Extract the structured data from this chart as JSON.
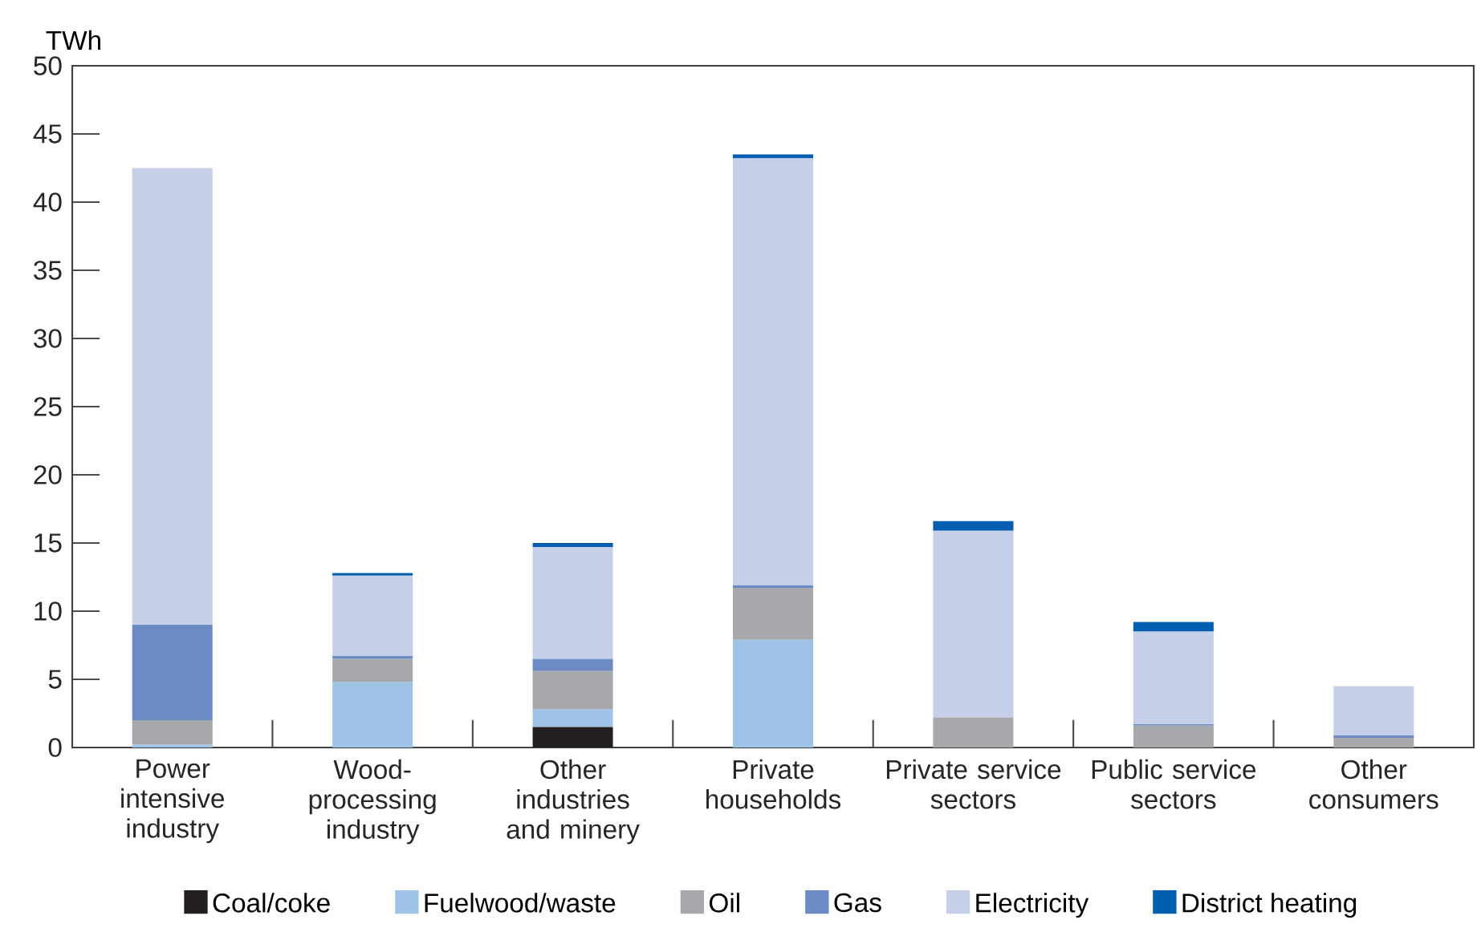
{
  "chart_data": {
    "type": "bar",
    "stacked": true,
    "ylabel": "TWh",
    "categories": [
      "Power intensive industry",
      "Wood-processing industry",
      "Other industries and minery",
      "Private households",
      "Private service sectors",
      "Public service sectors",
      "Other consumers"
    ],
    "series": [
      {
        "name": "Coal/coke",
        "color": "#231f20",
        "values": [
          0,
          0,
          1.5,
          0,
          0,
          0,
          0
        ]
      },
      {
        "name": "Fuelwood/waste",
        "color": "#9ec3e6",
        "values": [
          0.2,
          4.8,
          1.3,
          7.9,
          0,
          0,
          0
        ]
      },
      {
        "name": "Oil",
        "color": "#a7a8ab",
        "values": [
          1.8,
          1.7,
          2.8,
          3.8,
          2.2,
          1.6,
          0.7
        ]
      },
      {
        "name": "Gas",
        "color": "#6c8ac4",
        "values": [
          7.0,
          0.2,
          0.9,
          0.2,
          0,
          0.1,
          0.2
        ]
      },
      {
        "name": "Electricity",
        "color": "#c5cfe7",
        "values": [
          33.5,
          5.9,
          8.2,
          31.3,
          13.7,
          6.8,
          3.6
        ]
      },
      {
        "name": "District heating",
        "color": "#005eb0",
        "values": [
          0,
          0.2,
          0.3,
          0.3,
          0.7,
          0.7,
          0
        ]
      }
    ],
    "ylim": [
      0,
      50
    ],
    "yticks": [
      0,
      5,
      10,
      15,
      20,
      25,
      30,
      35,
      40,
      45,
      50
    ],
    "grid": false,
    "legend": "bottom"
  }
}
